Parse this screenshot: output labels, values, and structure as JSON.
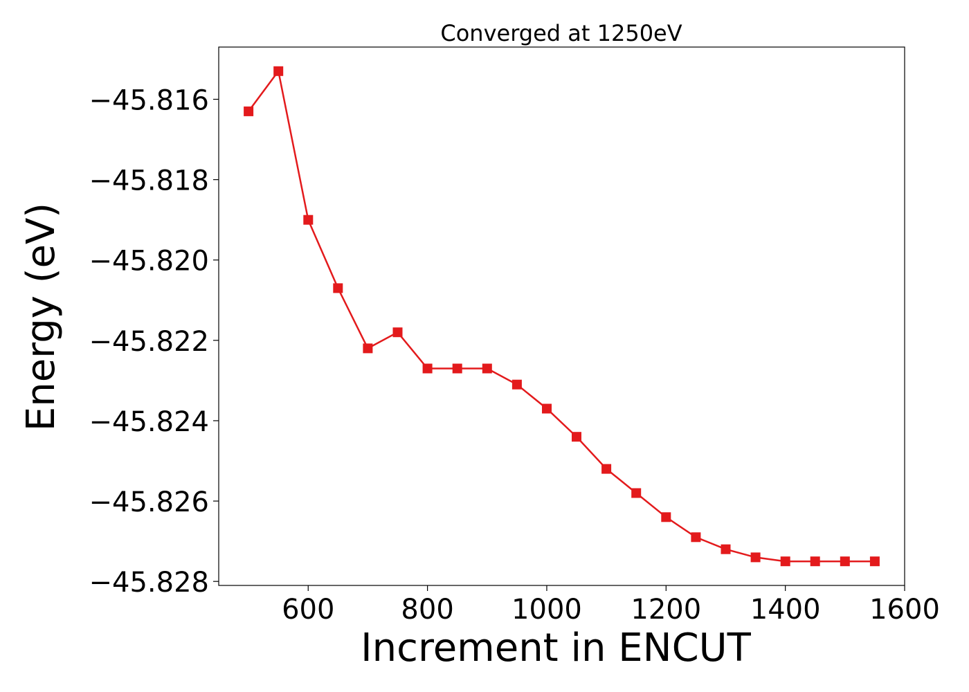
{
  "chart_data": {
    "type": "line",
    "title": "Converged at 1250eV",
    "xlabel": "Increment in ENCUT",
    "ylabel": "Energy (eV)",
    "xlim": [
      450,
      1600
    ],
    "ylim": [
      -45.8281,
      -45.8147
    ],
    "xticks": [
      600,
      800,
      1000,
      1200,
      1400,
      1600
    ],
    "xtick_labels": [
      "600",
      "800",
      "1000",
      "1200",
      "1400",
      "1600"
    ],
    "yticks": [
      -45.816,
      -45.818,
      -45.82,
      -45.822,
      -45.824,
      -45.826,
      -45.828
    ],
    "ytick_labels": [
      "−45.816",
      "−45.818",
      "−45.820",
      "−45.822",
      "−45.824",
      "−45.826",
      "−45.828"
    ],
    "grid": false,
    "series": [
      {
        "color": "#e31a1c",
        "marker": "square",
        "x": [
          500,
          550,
          600,
          650,
          700,
          750,
          800,
          850,
          900,
          950,
          1000,
          1050,
          1100,
          1150,
          1200,
          1250,
          1300,
          1350,
          1400,
          1450,
          1500,
          1550
        ],
        "y": [
          -45.8163,
          -45.8153,
          -45.819,
          -45.8207,
          -45.8222,
          -45.8218,
          -45.8227,
          -45.8227,
          -45.8227,
          -45.8231,
          -45.8237,
          -45.8244,
          -45.8252,
          -45.8258,
          -45.8264,
          -45.8269,
          -45.8272,
          -45.8274,
          -45.8275,
          -45.8275,
          -45.8275,
          -45.8275
        ]
      }
    ]
  }
}
